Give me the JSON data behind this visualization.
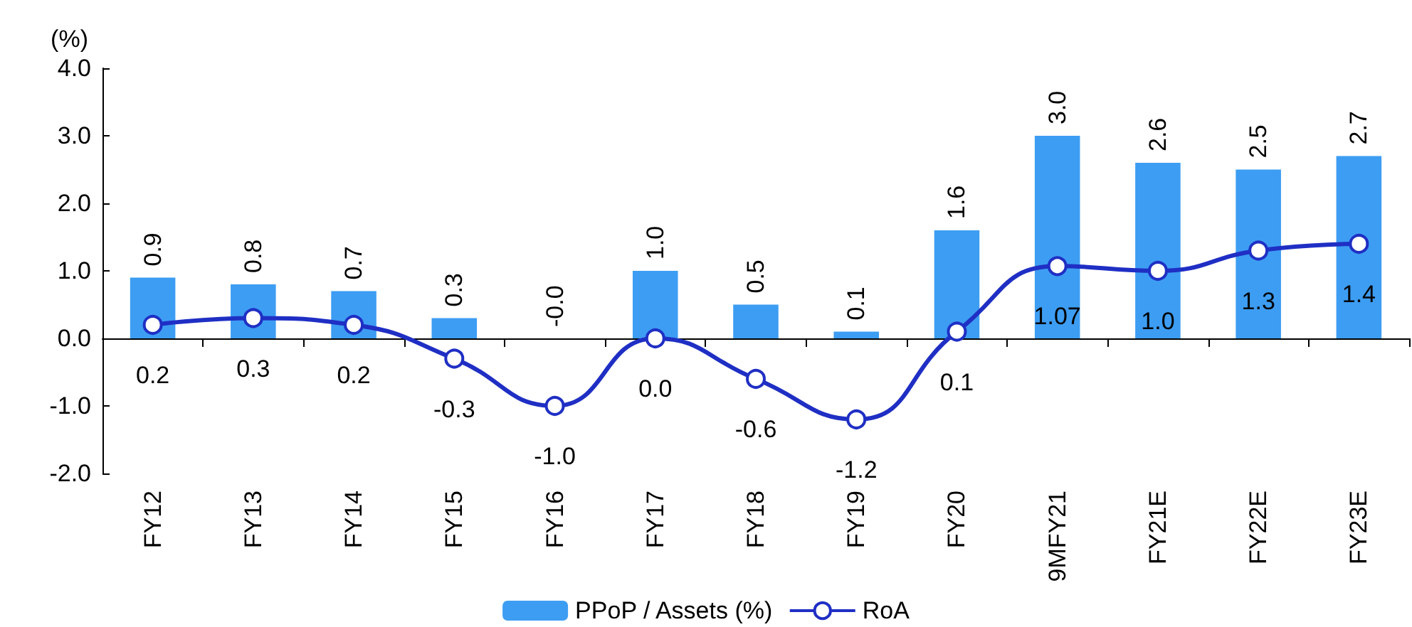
{
  "chart_data": {
    "type": "bar",
    "ylabel": "(%)",
    "categories": [
      "FY12",
      "FY13",
      "FY14",
      "FY15",
      "FY16",
      "FY17",
      "FY18",
      "FY19",
      "FY20",
      "9MFY21",
      "FY21E",
      "FY22E",
      "FY23E"
    ],
    "series": [
      {
        "name": "PPoP / Assets (%)",
        "color": "#3d9df3",
        "values": [
          0.9,
          0.8,
          0.7,
          0.3,
          -0.0,
          1.0,
          0.5,
          0.1,
          1.6,
          3.0,
          2.6,
          2.5,
          2.7
        ],
        "value_labels": [
          "0.9",
          "0.8",
          "0.7",
          "0.3",
          "-0.0",
          "1.0",
          "0.5",
          "0.1",
          "1.6",
          "3.0",
          "2.6",
          "2.5",
          "2.7"
        ]
      },
      {
        "name": "RoA",
        "type": "line",
        "color": "#1f2fc4",
        "marker": "circle",
        "values": [
          0.2,
          0.3,
          0.2,
          -0.3,
          -1.0,
          0.0,
          -0.6,
          -1.2,
          0.1,
          1.07,
          1.0,
          1.3,
          1.4
        ],
        "value_labels": [
          "0.2",
          "0.3",
          "0.2",
          "-0.3",
          "-1.0",
          "0.0",
          "-0.6",
          "-1.2",
          "0.1",
          "1.07",
          "1.0",
          "1.3",
          "1.4"
        ]
      }
    ],
    "ylim": [
      -2,
      4
    ],
    "yticks": [
      {
        "value": -2,
        "label": "-2.0"
      },
      {
        "value": -1,
        "label": "-1.0"
      },
      {
        "value": 0,
        "label": "0.0"
      },
      {
        "value": 1,
        "label": "1.0"
      },
      {
        "value": 2,
        "label": "2.0"
      },
      {
        "value": 3,
        "label": "3.0"
      },
      {
        "value": 4,
        "label": "4.0"
      }
    ],
    "legend": "bottom"
  }
}
